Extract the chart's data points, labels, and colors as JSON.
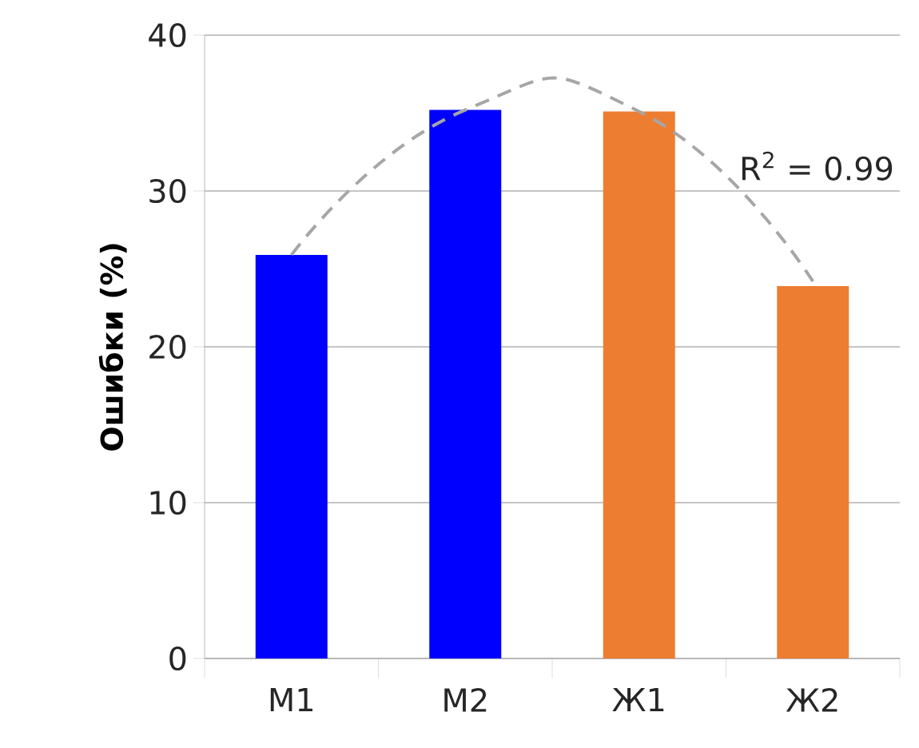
{
  "chart_data": {
    "type": "bar",
    "ylabel": "Ошибки (%)",
    "categories": [
      "М1",
      "М2",
      "Ж1",
      "Ж2"
    ],
    "series": [
      {
        "values": [
          25.9,
          35.2,
          35.1,
          23.9
        ],
        "colors": [
          "#0000ff",
          "#0000ff",
          "#ed7d31",
          "#ed7d31"
        ]
      },
      {
        "type": "line",
        "values": [
          25.9,
          35.2,
          35.1,
          24.2
        ],
        "color": "#a6a6a6",
        "line_style": "dashed",
        "marker": "none"
      }
    ],
    "annotations": [
      "R$^{2}$ = 0.99"
    ],
    "ylim": [
      0,
      40
    ],
    "yticks": [
      0,
      10,
      20,
      30,
      40
    ],
    "grid": "y"
  }
}
